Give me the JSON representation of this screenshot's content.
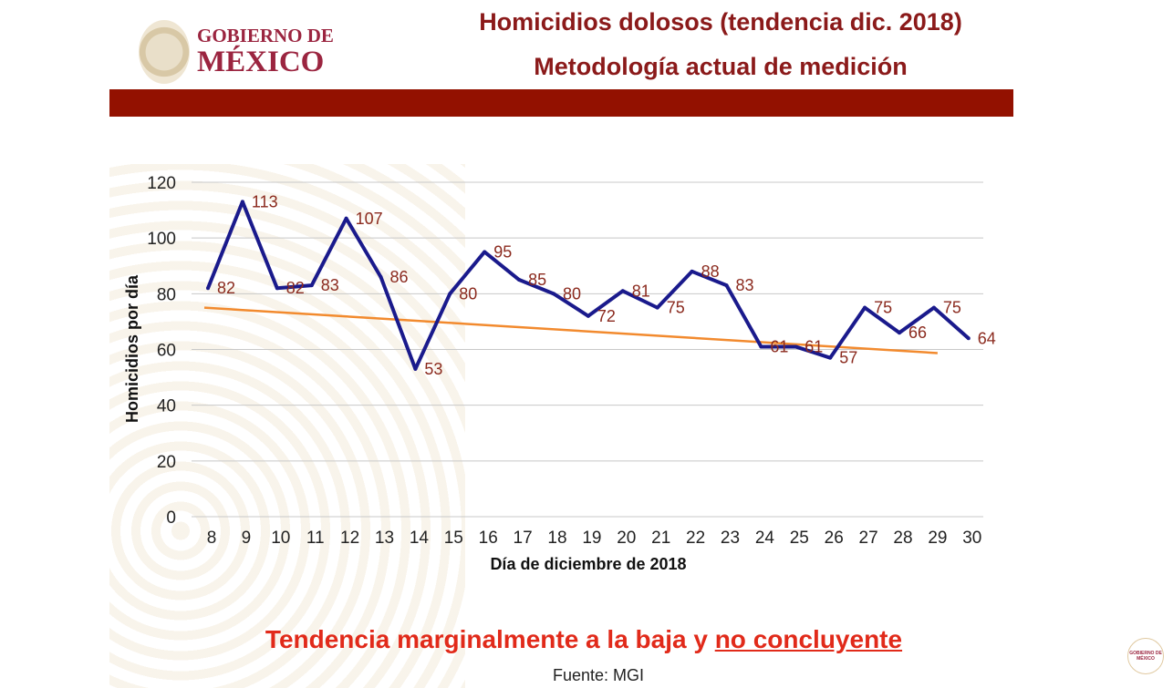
{
  "header": {
    "logo_line1": "GOBIERNO DE",
    "logo_line2": "MÉXICO",
    "title_line1": "Homicidios dolosos (tendencia dic. 2018)",
    "title_line2": "Metodología actual de medición",
    "band_color": "#931100"
  },
  "chart_data": {
    "type": "line",
    "title": "",
    "xlabel": "Día de diciembre de 2018",
    "ylabel": "Homicidios por día",
    "ylim": [
      0,
      120
    ],
    "yticks": [
      0,
      20,
      40,
      60,
      80,
      100,
      120
    ],
    "grid": true,
    "categories": [
      "8",
      "9",
      "10",
      "11",
      "12",
      "13",
      "14",
      "15",
      "16",
      "17",
      "18",
      "19",
      "20",
      "21",
      "22",
      "23",
      "24",
      "25",
      "26",
      "27",
      "28",
      "29",
      "30"
    ],
    "series": [
      {
        "color": "#1a1a8c",
        "values": [
          82,
          113,
          82,
          83,
          107,
          86,
          53,
          80,
          95,
          85,
          80,
          72,
          81,
          75,
          88,
          83,
          61,
          61,
          57,
          75,
          66,
          75,
          64
        ],
        "data_labels": true
      }
    ],
    "trendline": {
      "color": "#f28a2e",
      "from": {
        "x": "8",
        "y": 75
      },
      "to": {
        "x": "29",
        "y": 58.7
      }
    },
    "label_color": "#8b2a1e"
  },
  "footer": {
    "conclusion_prefix": "Tendencia marginalmente a la baja y ",
    "conclusion_underlined": "no concluyente",
    "source": "Fuente: MGI",
    "corner_logo": "GOBIERNO DE MÉXICO"
  }
}
